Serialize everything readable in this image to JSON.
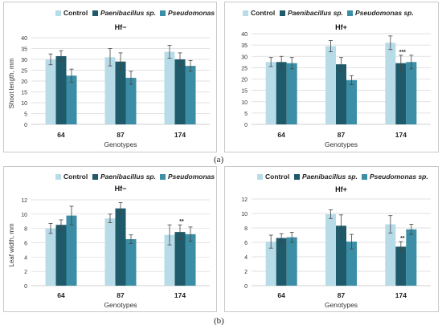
{
  "colors": {
    "control": "#b7dce8",
    "paenibacillus": "#1f5a6a",
    "pseudomonas": "#3b8ea5",
    "grid": "#d9d9d9",
    "axis": "#bfbfbf",
    "text": "#333333"
  },
  "figure_labels": {
    "a": "(a)",
    "b": "(b)"
  },
  "chart_data": [
    {
      "type": "bar",
      "title": "Hf−",
      "xlabel": "Genotypes",
      "ylabel": "Shoot length, mm",
      "ylim": [
        0,
        40
      ],
      "yticks": [
        "0",
        "5",
        "10",
        "15",
        "20",
        "25",
        "30",
        "35",
        "40"
      ],
      "grid": true,
      "legend": "top-left",
      "categories": [
        "64",
        "87",
        "174"
      ],
      "series": [
        {
          "name": "Control",
          "values": [
            30,
            31,
            33.5
          ],
          "errors": [
            2.5,
            4,
            3
          ]
        },
        {
          "name": "Paenibacillus sp.",
          "values": [
            31.5,
            29,
            30
          ],
          "errors": [
            2.5,
            4,
            3
          ]
        },
        {
          "name": "Pseudomonas sp.",
          "values": [
            22.5,
            21.5,
            27
          ],
          "errors": [
            3,
            3,
            2.5
          ]
        }
      ],
      "annotations": [
        "",
        "",
        "",
        "",
        "",
        "",
        "",
        "",
        ""
      ]
    },
    {
      "type": "bar",
      "title": "Hf+",
      "xlabel": "Genotypes",
      "ylabel": "",
      "ylim": [
        0,
        40
      ],
      "yticks": [
        "0",
        "5",
        "10",
        "15",
        "20",
        "25",
        "30",
        "35",
        "40"
      ],
      "grid": true,
      "legend": "top",
      "categories": [
        "64",
        "87",
        "174"
      ],
      "series": [
        {
          "name": "Control",
          "values": [
            27.5,
            34.5,
            36
          ],
          "errors": [
            2,
            2.5,
            3
          ]
        },
        {
          "name": "Paenibacillus sp.",
          "values": [
            27.5,
            26.5,
            27
          ],
          "errors": [
            2.5,
            3,
            3.5
          ]
        },
        {
          "name": "Pseudomonas sp.",
          "values": [
            27,
            19.5,
            27.5
          ],
          "errors": [
            2.5,
            2,
            3
          ]
        }
      ],
      "annotations": [
        "",
        "",
        "",
        "",
        "",
        "",
        "",
        "***",
        ""
      ]
    },
    {
      "type": "bar",
      "title": "Hf−",
      "xlabel": "Genotypes",
      "ylabel": "Leaf width, mm",
      "ylim": [
        0,
        12
      ],
      "yticks": [
        "0",
        "2",
        "4",
        "6",
        "8",
        "10",
        "12"
      ],
      "grid": true,
      "legend": "top-left",
      "categories": [
        "64",
        "87",
        "174"
      ],
      "series": [
        {
          "name": "Control",
          "values": [
            8,
            9.4,
            7.1
          ],
          "errors": [
            0.7,
            0.6,
            1.4
          ]
        },
        {
          "name": "Paenibacillus sp.",
          "values": [
            8.5,
            10.8,
            7.5
          ],
          "errors": [
            0.7,
            0.8,
            1
          ]
        },
        {
          "name": "Pseudomonas sp.",
          "values": [
            9.8,
            6.5,
            7.2
          ],
          "errors": [
            1.3,
            0.6,
            1
          ]
        }
      ],
      "annotations": [
        "",
        "",
        "",
        "",
        "",
        "",
        "",
        "**",
        ""
      ]
    },
    {
      "type": "bar",
      "title": "Hf+",
      "xlabel": "Genotypes",
      "ylabel": "",
      "ylim": [
        0,
        12
      ],
      "yticks": [
        "0",
        "2",
        "4",
        "6",
        "8",
        "10",
        "12"
      ],
      "grid": true,
      "legend": "top",
      "categories": [
        "64",
        "87",
        "174"
      ],
      "series": [
        {
          "name": "Control",
          "values": [
            6.1,
            9.9,
            8.5
          ],
          "errors": [
            0.9,
            0.6,
            1.2
          ]
        },
        {
          "name": "Paenibacillus sp.",
          "values": [
            6.6,
            8.3,
            5.4
          ],
          "errors": [
            0.6,
            1.5,
            0.7
          ]
        },
        {
          "name": "Pseudomonas sp.",
          "values": [
            6.7,
            6.1,
            7.8
          ],
          "errors": [
            0.7,
            1,
            0.7
          ]
        }
      ],
      "annotations": [
        "",
        "",
        "",
        "",
        "",
        "",
        "",
        "**",
        ""
      ]
    }
  ]
}
